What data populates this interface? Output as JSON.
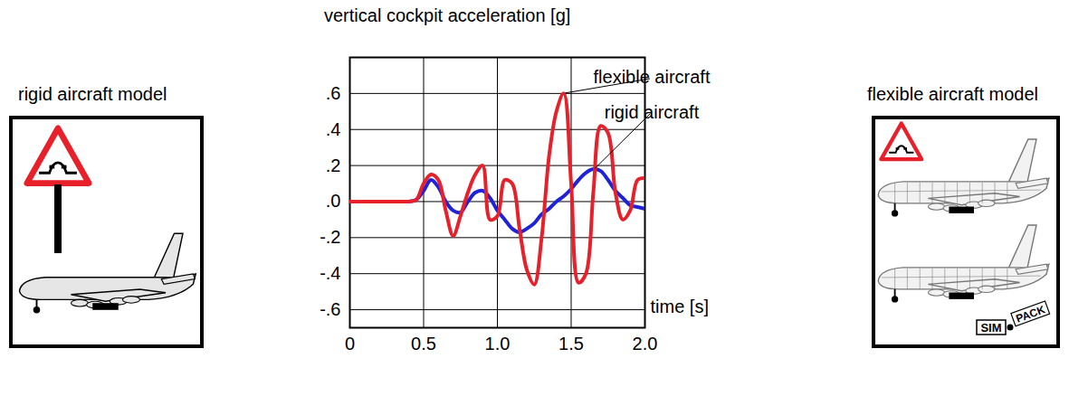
{
  "chart_data": {
    "type": "line",
    "title": "vertical cockpit acceleration [g]",
    "x_label": "time [s]",
    "x": [
      0,
      0.05,
      0.1,
      0.15,
      0.2,
      0.25,
      0.3,
      0.35,
      0.4,
      0.45,
      0.5,
      0.55,
      0.6,
      0.65,
      0.7,
      0.75,
      0.8,
      0.85,
      0.9,
      0.95,
      1,
      1.05,
      1.1,
      1.15,
      1.2,
      1.25,
      1.3,
      1.35,
      1.4,
      1.45,
      1.5,
      1.55,
      1.6,
      1.65,
      1.7,
      1.75,
      1.8,
      1.85,
      1.9,
      1.95,
      2
    ],
    "series": [
      {
        "name": "flexible aircraft",
        "color": "#e8202a",
        "values": [
          0,
          0,
          0,
          0,
          0,
          0,
          0,
          0,
          0,
          0.01,
          0.1,
          0.15,
          0.12,
          -0.05,
          -0.19,
          -0.08,
          0.05,
          0.15,
          0.2,
          -0.1,
          -0.08,
          0.12,
          0.1,
          -0.15,
          -0.38,
          -0.46,
          -0.2,
          0.25,
          0.5,
          0.6,
          0.1,
          -0.45,
          -0.4,
          0.05,
          0.42,
          0.38,
          0.05,
          -0.1,
          -0.05,
          0.12,
          0.13
        ]
      },
      {
        "name": "rigid aircraft",
        "color": "#1e22d8",
        "values": [
          0,
          0,
          0,
          0,
          0,
          0,
          0,
          0,
          0,
          0.01,
          0.06,
          0.12,
          0.08,
          0,
          -0.05,
          -0.06,
          0,
          0.05,
          0.06,
          0.02,
          -0.05,
          -0.1,
          -0.15,
          -0.17,
          -0.15,
          -0.12,
          -0.07,
          -0.04,
          0,
          0.03,
          0.07,
          0.12,
          0.16,
          0.18,
          0.17,
          0.12,
          0.06,
          0.02,
          -0.02,
          -0.03,
          -0.04
        ]
      }
    ],
    "xlim": [
      0,
      2
    ],
    "xticks": [
      0,
      0.5,
      {
        "value": 1,
        "label": "1.0"
      },
      1.5,
      {
        "value": 2,
        "label": "2.0"
      }
    ],
    "ylim": [
      -0.7,
      0.8
    ],
    "yticks": [
      {
        "value": -0.6,
        "label": "-.6"
      },
      {
        "value": -0.4,
        "label": "-.4"
      },
      {
        "value": -0.2,
        "label": "-.2"
      },
      {
        "value": 0,
        "label": ".0"
      },
      {
        "value": 0.2,
        "label": ".2"
      },
      {
        "value": 0.4,
        "label": ".4"
      },
      {
        "value": 0.6,
        "label": ".6"
      }
    ],
    "grid": true
  },
  "panels": {
    "left": {
      "label": "rigid aircraft model"
    },
    "right": {
      "label": "flexible aircraft model",
      "logo": [
        "SIM",
        "PACK"
      ]
    }
  }
}
